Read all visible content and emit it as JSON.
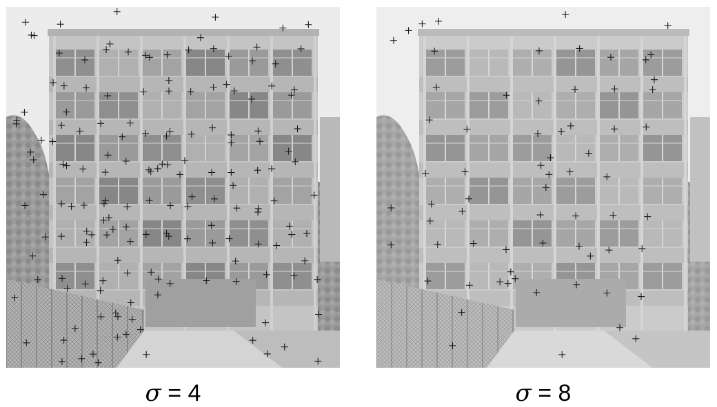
{
  "figure": {
    "panels": [
      {
        "id": "left",
        "caption_symbol": "σ",
        "caption_equals": "=",
        "caption_value": "4"
      },
      {
        "id": "right",
        "caption_symbol": "σ",
        "caption_equals": "=",
        "caption_value": "8"
      }
    ]
  }
}
